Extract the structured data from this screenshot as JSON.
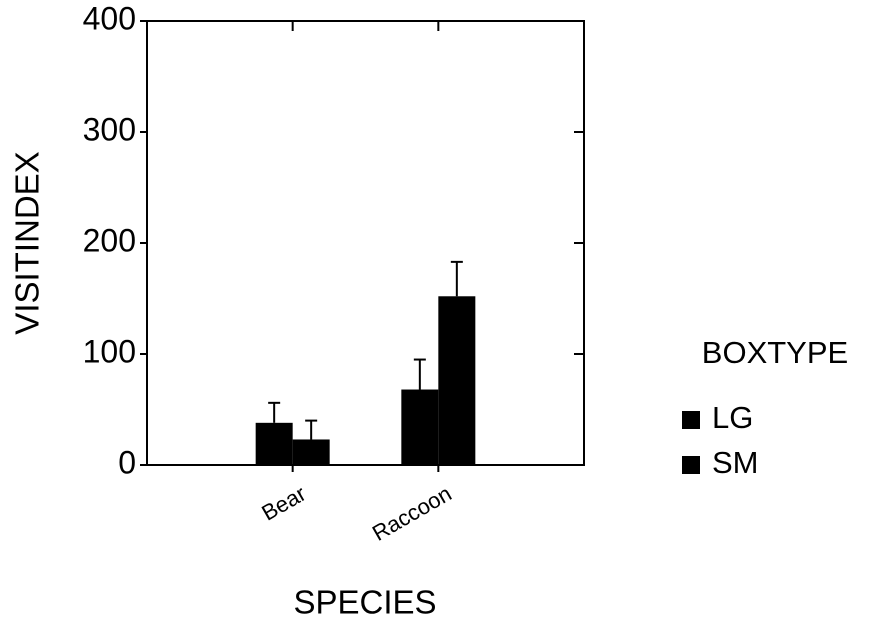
{
  "chart_data": {
    "type": "bar",
    "x_label": "SPECIES",
    "y_label": "VISITINDEX",
    "categories": [
      "Bear",
      "Raccoon"
    ],
    "series": [
      {
        "name": "LG",
        "color": "#000000",
        "values": [
          38,
          68
        ],
        "errors": [
          18,
          27
        ]
      },
      {
        "name": "SM",
        "color": "#000000",
        "values": [
          23,
          152
        ],
        "errors": [
          17,
          31
        ]
      }
    ],
    "legend_title": "BOXTYPE",
    "ylim": [
      0,
      400
    ],
    "yticks": [
      0,
      100,
      200,
      300,
      400
    ],
    "grid": false,
    "legend": "right"
  }
}
